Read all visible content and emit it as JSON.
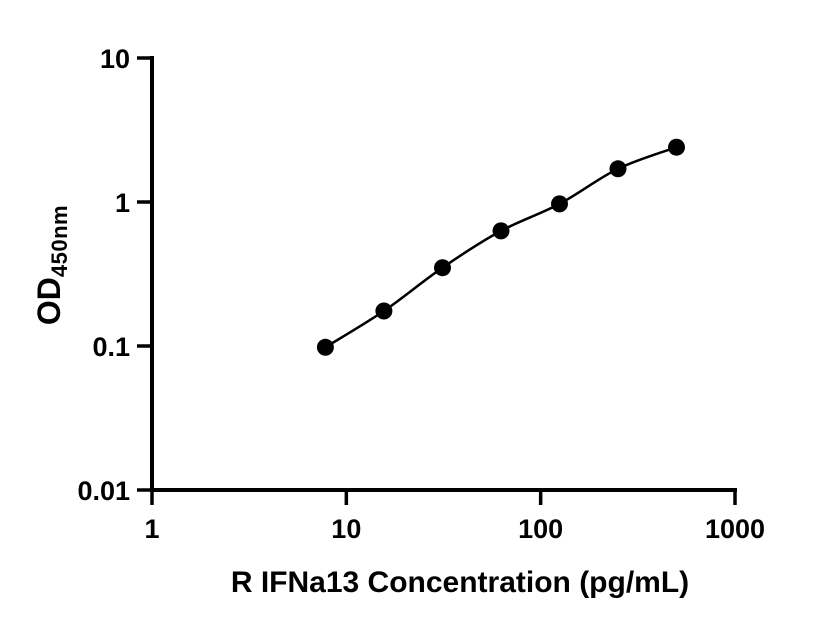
{
  "chart_data": {
    "type": "line",
    "title": "",
    "xlabel": "R IFNa13 Concentration (pg/mL)",
    "ylabel_main": "OD",
    "ylabel_sub": "450nm",
    "x_scale": "log",
    "y_scale": "log",
    "xlim": [
      1,
      1000
    ],
    "ylim": [
      0.01,
      10
    ],
    "grid": false,
    "legend": false,
    "x_ticks": [
      {
        "value": 1,
        "label": "1"
      },
      {
        "value": 10,
        "label": "10"
      },
      {
        "value": 100,
        "label": "100"
      },
      {
        "value": 1000,
        "label": "1000"
      }
    ],
    "y_ticks": [
      {
        "value": 10,
        "label": "10"
      },
      {
        "value": 1,
        "label": "1"
      },
      {
        "value": 0.1,
        "label": "0.1"
      },
      {
        "value": 0.01,
        "label": "0.01"
      }
    ],
    "series": [
      {
        "marker": "filled-circle",
        "color": "#000000",
        "points": [
          {
            "x": 7.8,
            "y": 0.098
          },
          {
            "x": 15.6,
            "y": 0.175
          },
          {
            "x": 31.25,
            "y": 0.35
          },
          {
            "x": 62.5,
            "y": 0.63
          },
          {
            "x": 125,
            "y": 0.97
          },
          {
            "x": 250,
            "y": 1.7
          },
          {
            "x": 500,
            "y": 2.4
          }
        ]
      }
    ]
  },
  "colors": {
    "axis": "#000000",
    "background": "#ffffff"
  }
}
